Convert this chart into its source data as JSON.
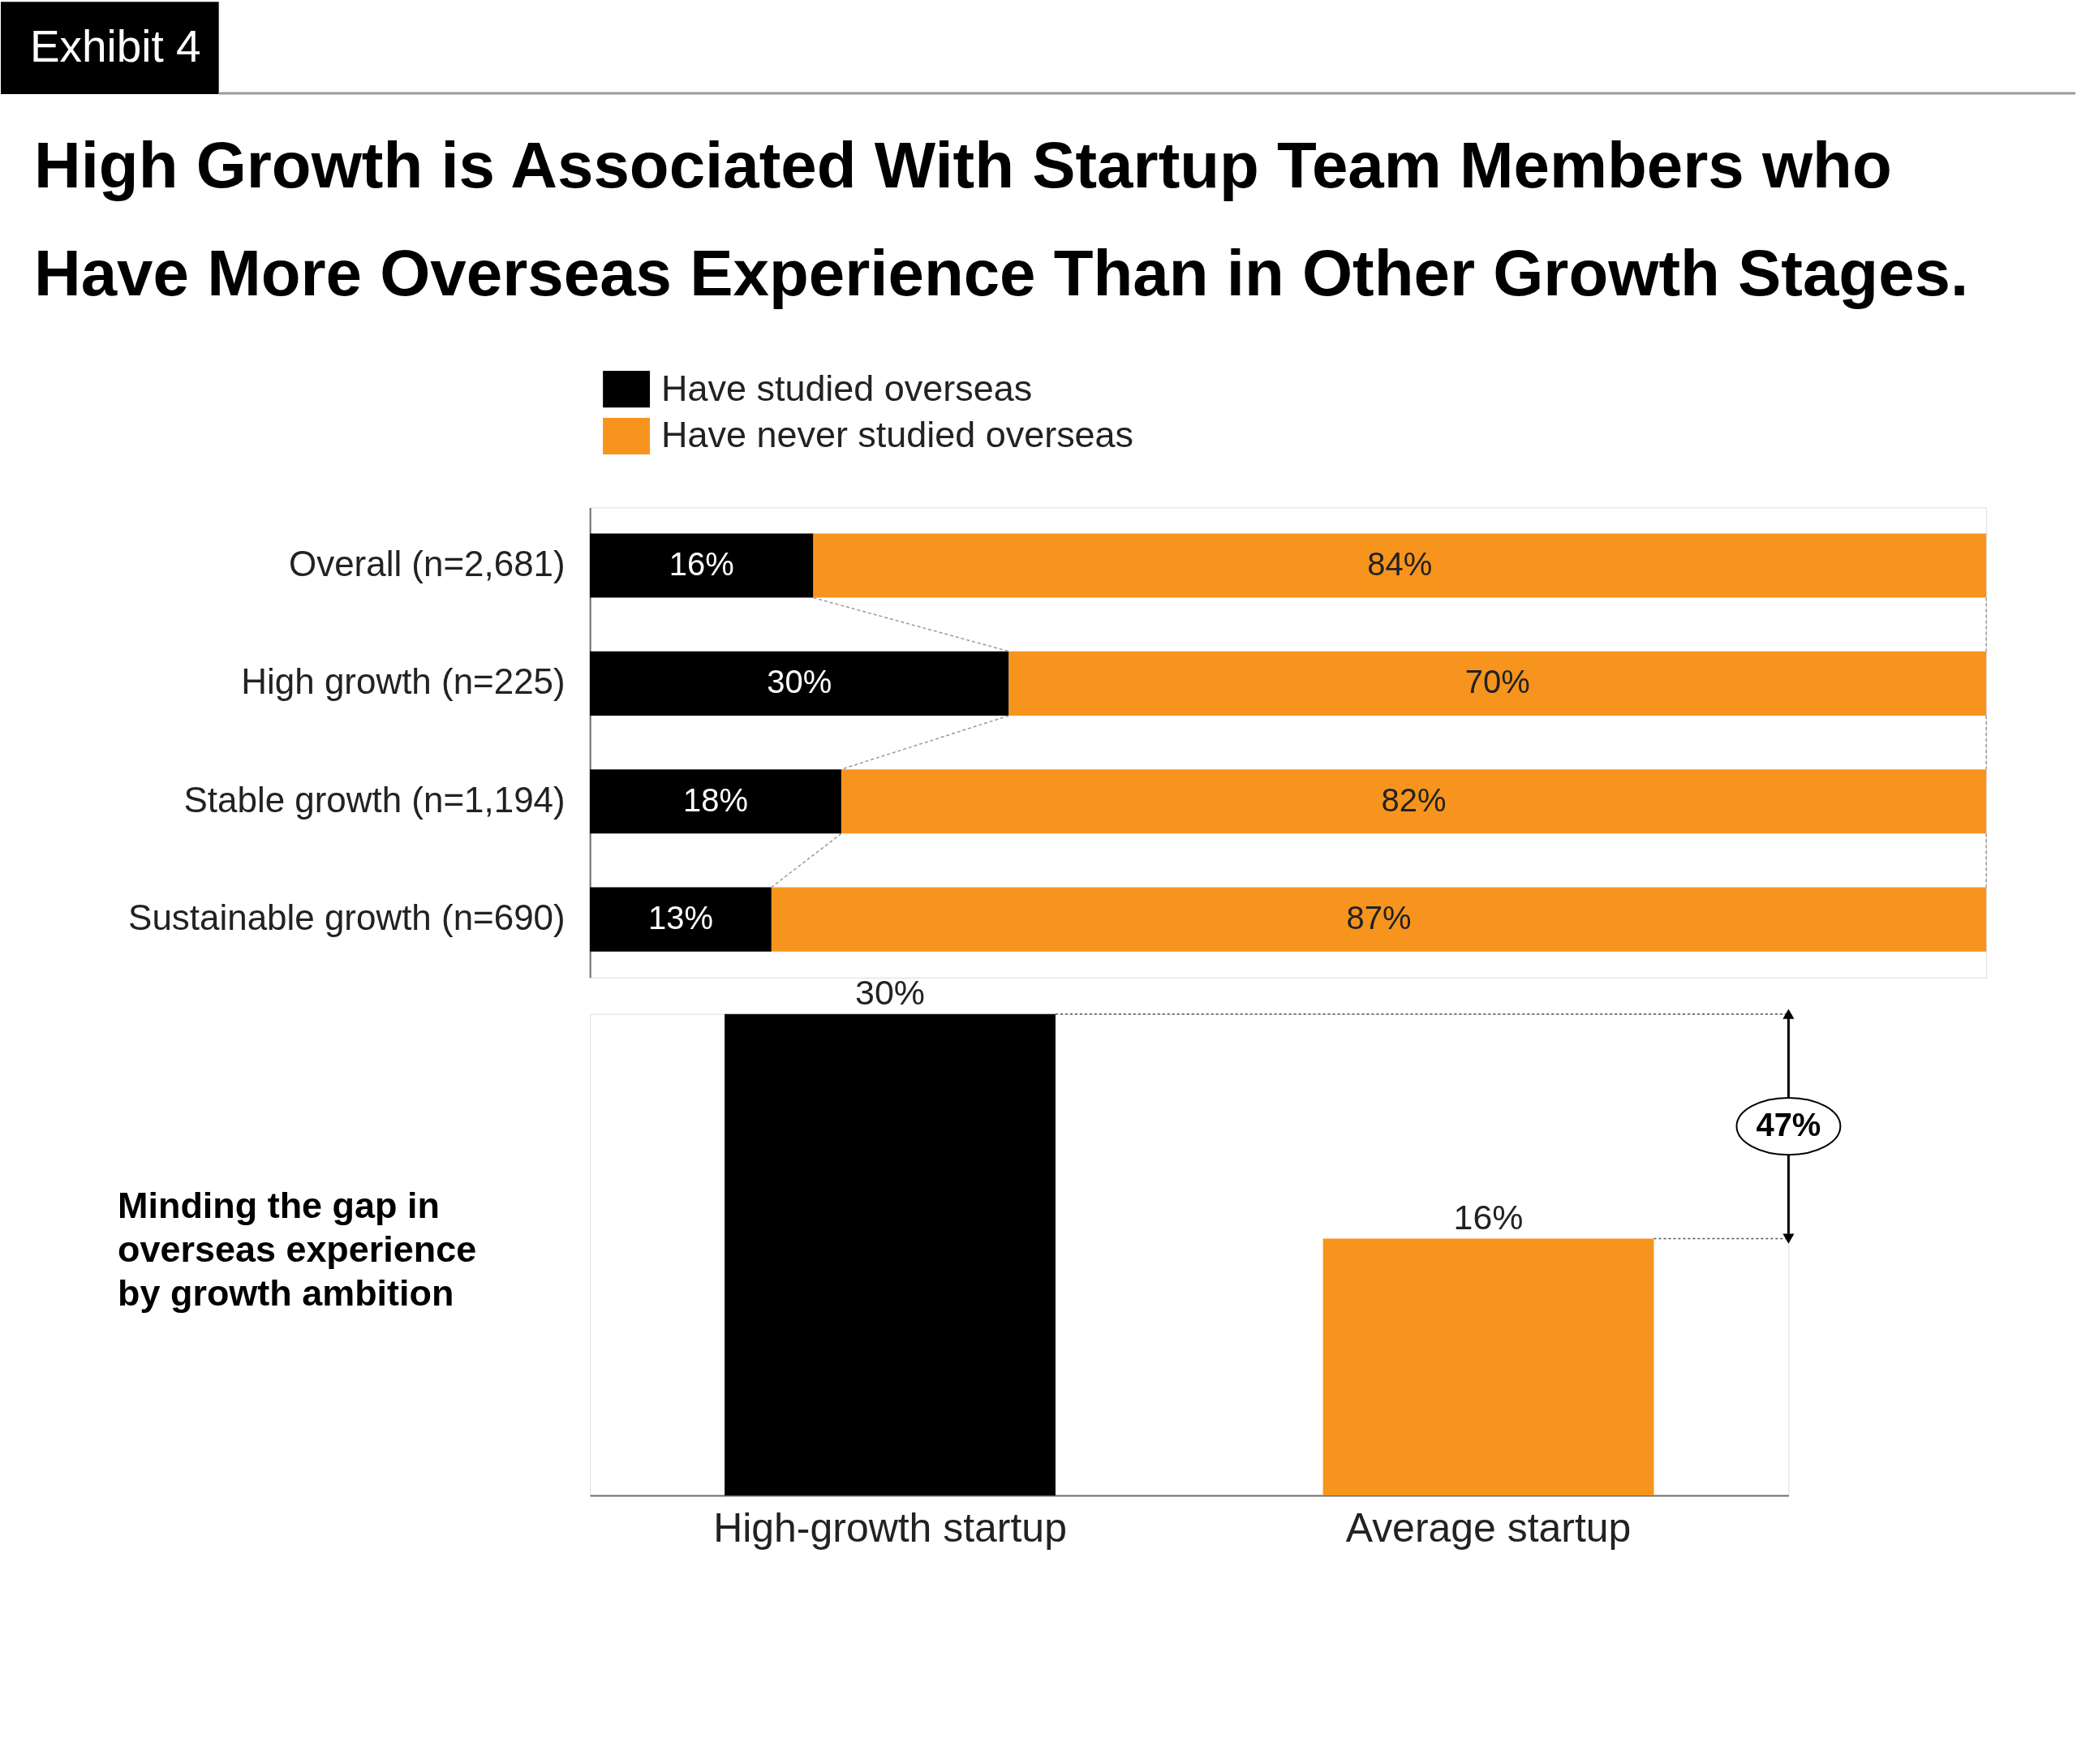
{
  "chart_data": [
    {
      "type": "bar",
      "orientation": "horizontal",
      "stacked": true,
      "title": "High Growth is Associated With Startup Team Members who Have More Overseas Experience Than in Other Growth Stages.",
      "annotations": [
        "Exhibit 4"
      ],
      "categories": [
        "Overall (n=2,681)",
        "High growth (n=225)",
        "Stable growth (n=1,194)",
        "Sustainable growth (n=690)"
      ],
      "series": [
        {
          "name": "Have studied overseas",
          "color": "#000000",
          "values": [
            16,
            30,
            18,
            13
          ],
          "value_labels": [
            "16%",
            "30%",
            "18%",
            "13%"
          ]
        },
        {
          "name": "Have never studied overseas",
          "color": "#f7941d",
          "values": [
            84,
            70,
            82,
            87
          ],
          "value_labels": [
            "84%",
            "70%",
            "82%",
            "87%"
          ]
        }
      ],
      "legend": "top",
      "tick_labels": "y"
    },
    {
      "type": "bar",
      "title": "Minding the gap in overseas experience by growth ambition",
      "annotations": [
        "47%"
      ],
      "categories": [
        "High-growth startup",
        "Average startup"
      ],
      "values": [
        30,
        16
      ],
      "colors": [
        "#000000",
        "#f7941d"
      ],
      "value_labels": [
        "30%",
        "16%"
      ],
      "ref_lines": [
        {
          "axis": "y",
          "value": 30,
          "line_style": "dotted",
          "color": "#555555"
        },
        {
          "axis": "y",
          "value": 16,
          "line_style": "dotted",
          "color": "#555555"
        }
      ],
      "tick_labels": "x"
    }
  ]
}
